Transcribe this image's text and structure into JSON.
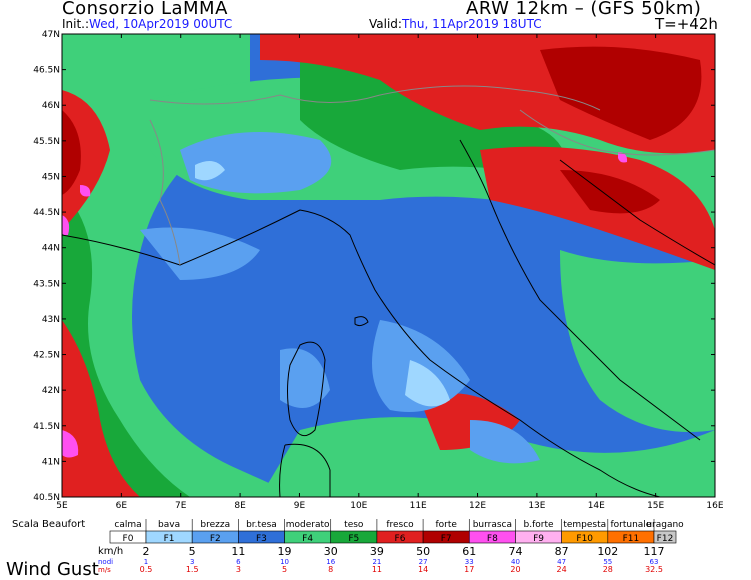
{
  "header": {
    "org": "Consorzio LaMMA",
    "model": "ARW 12km  –  (GFS 50km)",
    "init_label": "Init.:",
    "init_value": "Wed, 10Apr2019 00UTC",
    "valid_label": "Valid:",
    "valid_value": "Thu, 11Apr2019 18UTC",
    "timestep": "T=+42h"
  },
  "map": {
    "lat_labels": [
      "47N",
      "46.5N",
      "46N",
      "45.5N",
      "45N",
      "44.5N",
      "44N",
      "43.5N",
      "43N",
      "42.5N",
      "42N",
      "41.5N",
      "41N",
      "40.5N"
    ],
    "lon_labels": [
      "5E",
      "6E",
      "7E",
      "8E",
      "9E",
      "10E",
      "11E",
      "12E",
      "13E",
      "14E",
      "15E",
      "16E"
    ],
    "lat_range": [
      40.5,
      47
    ],
    "lon_range": [
      5,
      16
    ]
  },
  "legend": {
    "scale_label": "Scala Beaufort",
    "title": "Wind Gust",
    "units": [
      "km/h",
      "nodi",
      "m/s"
    ],
    "descriptions": [
      "calma",
      "bava",
      "brezza",
      "br.tesa",
      "moderato",
      "teso",
      "fresco",
      "forte",
      "burrasca",
      "b.forte",
      "tempesta",
      "fortunale",
      "uragano"
    ],
    "classes": [
      "F0",
      "F1",
      "F2",
      "F3",
      "F4",
      "F5",
      "F6",
      "F7",
      "F8",
      "F9",
      "F10",
      "F11",
      "F12"
    ],
    "class_colors": [
      "#ffffff",
      "#9fd7ff",
      "#5aa0f0",
      "#2f6fd8",
      "#3fd07a",
      "#18a83a",
      "#e02020",
      "#b00000",
      "#ff50f0",
      "#ffb0f0",
      "#ff9a00",
      "#ff7000",
      "#c8c8c8"
    ],
    "kmh": [
      "2",
      "5",
      "11",
      "19",
      "30",
      "39",
      "50",
      "61",
      "74",
      "87",
      "102",
      "117"
    ],
    "knots": [
      "1",
      "3",
      "6",
      "10",
      "16",
      "21",
      "27",
      "33",
      "40",
      "47",
      "55",
      "63"
    ],
    "ms": [
      "0.5",
      "1.5",
      "3",
      "5",
      "8",
      "11",
      "14",
      "17",
      "20",
      "24",
      "28",
      "32.5"
    ]
  }
}
